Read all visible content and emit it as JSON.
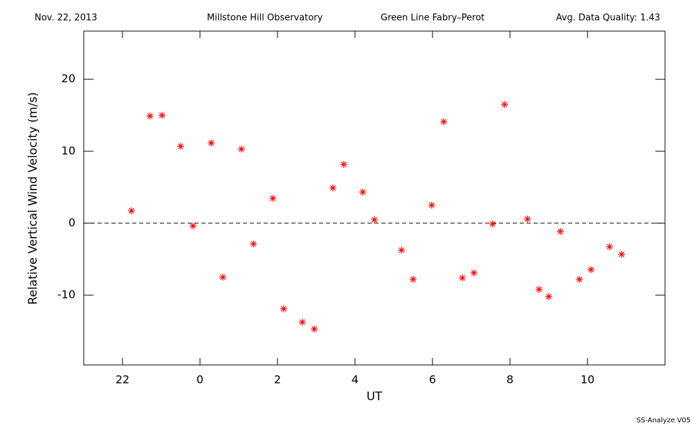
{
  "chart_data": {
    "type": "scatter",
    "header": [
      "Nov. 22, 2013",
      "Millstone Hill Observatory",
      "Green Line Fabry–Perot",
      "Avg. Data Quality: 1.43"
    ],
    "footer": "SS-Analyze V05",
    "xlabel": "UT",
    "ylabel": "Relative Vertical Wind Velocity (m/s)",
    "xlim": [
      -3,
      12
    ],
    "ylim": [
      -19.7,
      26.7
    ],
    "xticks": [
      {
        "value": -2,
        "label": "22"
      },
      0,
      2,
      4,
      6,
      8,
      10
    ],
    "yticks": [
      -10,
      0,
      10,
      20
    ],
    "hline": 0,
    "color": "#ff0000",
    "x": [
      -1.77,
      -1.29,
      -0.98,
      -0.5,
      -0.18,
      0.29,
      0.59,
      1.07,
      1.38,
      1.88,
      2.16,
      2.64,
      2.95,
      3.43,
      3.71,
      4.2,
      4.5,
      5.2,
      5.5,
      5.98,
      6.29,
      6.77,
      7.07,
      7.55,
      7.86,
      8.45,
      8.75,
      9.0,
      9.3,
      9.79,
      10.09,
      10.57,
      10.88
    ],
    "values": [
      1.73,
      14.9,
      15.0,
      10.7,
      -0.38,
      11.15,
      -7.5,
      10.3,
      -2.88,
      3.46,
      -11.9,
      -13.75,
      -14.7,
      4.9,
      8.17,
      4.33,
      0.48,
      -3.75,
      -7.8,
      2.5,
      14.1,
      -7.6,
      -6.9,
      -0.1,
      16.5,
      0.58,
      -9.2,
      -10.2,
      -1.15,
      -7.8,
      -6.45,
      -3.27,
      -4.33
    ]
  }
}
